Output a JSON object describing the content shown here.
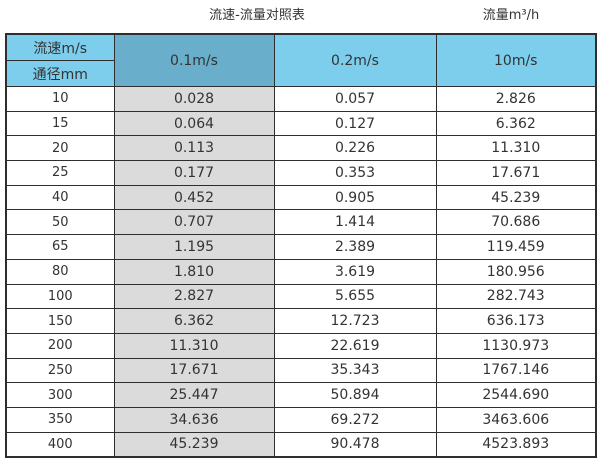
{
  "titles": {
    "left": "流速-流量对照表",
    "right": "流量m³/h"
  },
  "table": {
    "corner": {
      "top": "流速m/s",
      "bottom": "通径mm"
    },
    "columns": [
      "0.1m/s",
      "0.2m/s",
      "10m/s"
    ],
    "rows": [
      [
        "10",
        "0.028",
        "0.057",
        "2.826"
      ],
      [
        "15",
        "0.064",
        "0.127",
        "6.362"
      ],
      [
        "20",
        "0.113",
        "0.226",
        "11.310"
      ],
      [
        "25",
        "0.177",
        "0.353",
        "17.671"
      ],
      [
        "40",
        "0.452",
        "0.905",
        "45.239"
      ],
      [
        "50",
        "0.707",
        "1.414",
        "70.686"
      ],
      [
        "65",
        "1.195",
        "2.389",
        "119.459"
      ],
      [
        "80",
        "1.810",
        "3.619",
        "180.956"
      ],
      [
        "100",
        "2.827",
        "5.655",
        "282.743"
      ],
      [
        "150",
        "6.362",
        "12.723",
        "636.173"
      ],
      [
        "200",
        "11.310",
        "22.619",
        "1130.973"
      ],
      [
        "250",
        "17.671",
        "35.343",
        "1767.146"
      ],
      [
        "300",
        "25.447",
        "50.894",
        "2544.690"
      ],
      [
        "350",
        "34.636",
        "69.272",
        "3463.606"
      ],
      [
        "400",
        "45.239",
        "90.478",
        "4523.893"
      ]
    ]
  },
  "colors": {
    "header_light_blue": "#7cceec",
    "header_dark_blue": "#69aecb",
    "first_value_column_gray": "#dbdbdb",
    "border": "#2e2e2e",
    "text": "#333333"
  },
  "chart_data": {
    "type": "table",
    "title": "流速-流量对照表",
    "unit_label": "流量m³/h",
    "column_header_label": "流速m/s",
    "row_header_label": "通径mm",
    "velocity_columns_m_per_s": [
      0.1,
      0.2,
      10
    ],
    "diameters_mm": [
      10,
      15,
      20,
      25,
      40,
      50,
      65,
      80,
      100,
      150,
      200,
      250,
      300,
      350,
      400
    ],
    "series": [
      {
        "name": "0.1m/s",
        "values": [
          0.028,
          0.064,
          0.113,
          0.177,
          0.452,
          0.707,
          1.195,
          1.81,
          2.827,
          6.362,
          11.31,
          17.671,
          25.447,
          34.636,
          45.239
        ]
      },
      {
        "name": "0.2m/s",
        "values": [
          0.057,
          0.127,
          0.226,
          0.353,
          0.905,
          1.414,
          2.389,
          3.619,
          5.655,
          12.723,
          22.619,
          35.343,
          50.894,
          69.272,
          90.478
        ]
      },
      {
        "name": "10m/s",
        "values": [
          2.826,
          6.362,
          11.31,
          17.671,
          45.239,
          70.686,
          119.459,
          180.956,
          282.743,
          636.173,
          1130.973,
          1767.146,
          2544.69,
          3463.606,
          4523.893
        ]
      }
    ]
  }
}
